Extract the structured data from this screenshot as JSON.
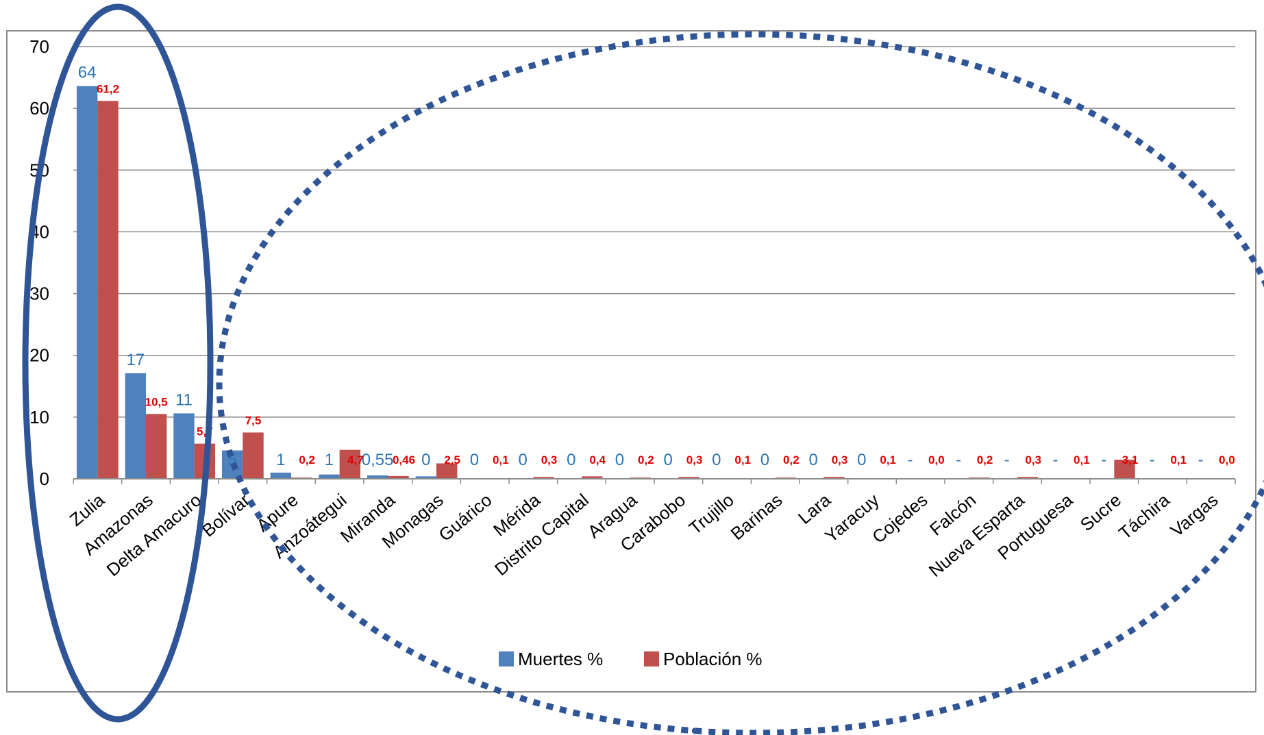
{
  "chart_data": {
    "type": "bar",
    "title": "",
    "xlabel": "",
    "ylabel": "",
    "ylim": [
      0,
      70
    ],
    "yticks": [
      0,
      10,
      20,
      30,
      40,
      50,
      60,
      70
    ],
    "grid": true,
    "legend_position": "bottom",
    "categories": [
      "Zulia",
      "Amazonas",
      "Delta Amacuro",
      "Bolívar",
      "Apure",
      "Anzoátegui",
      "Miranda",
      "Monagas",
      "Guárico",
      "Mérida",
      "Distrito Capital",
      "Aragua",
      "Carabobo",
      "Trujillo",
      "Barinas",
      "Lara",
      "Yaracuy",
      "Cojedes",
      "Falcón",
      "Nueva Esparta",
      "Portuguesa",
      "Sucre",
      "Táchira",
      "Vargas"
    ],
    "series": [
      {
        "name": "Muertes %",
        "color": "#4f81bd",
        "values": [
          63.6,
          17.1,
          10.6,
          4.6,
          1.0,
          0.7,
          0.55,
          0.4,
          0,
          0,
          0,
          0,
          0,
          0,
          0,
          0,
          0,
          0,
          0,
          0,
          0,
          0,
          0,
          0
        ],
        "data_labels": [
          "64",
          "17",
          "11",
          "5",
          "1",
          "1",
          "0,55",
          "0",
          "0",
          "0",
          "0",
          "0",
          "0",
          "0",
          "0",
          "0",
          "0",
          "-",
          "-",
          "-",
          "-",
          "-",
          "-",
          "-"
        ]
      },
      {
        "name": "Población %",
        "color": "#c0504d",
        "values": [
          61.2,
          10.5,
          5.7,
          7.5,
          0.2,
          4.7,
          0.46,
          2.5,
          0.1,
          0.3,
          0.4,
          0.2,
          0.3,
          0.1,
          0.2,
          0.3,
          0.1,
          0.0,
          0.2,
          0.3,
          0.1,
          3.1,
          0.1,
          0.0
        ],
        "data_labels": [
          "61,2",
          "10,5",
          "5,7",
          "7,5",
          "0,2",
          "4,7",
          "0,46",
          "2,5",
          "0,1",
          "0,3",
          "0,4",
          "0,2",
          "0,3",
          "0,1",
          "0,2",
          "0,3",
          "0,1",
          "0,0",
          "0,2",
          "0,3",
          "0,1",
          "3,1",
          "0,1",
          "0,0"
        ]
      }
    ]
  },
  "colors": {
    "annotation_ellipse": "#2f5597",
    "gridline": "#8c8c8c",
    "label_muertes": "#2e75b6",
    "label_poblacion": "#e00000"
  }
}
